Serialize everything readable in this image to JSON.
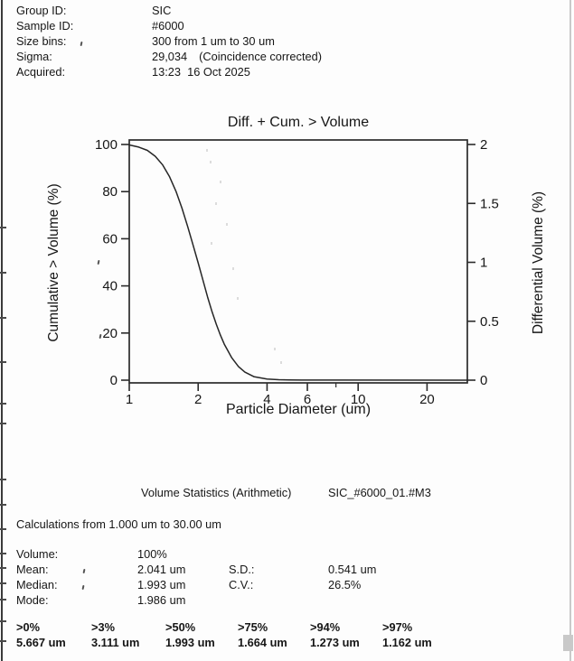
{
  "page": {
    "background": "#fdfdfd",
    "ink": "#161616"
  },
  "header": {
    "rows": [
      {
        "label": "Group ID:",
        "value": "SIC"
      },
      {
        "label": "Sample ID:",
        "value": "#6000"
      },
      {
        "label": "Size bins:",
        "value": "300 from 1 um to 30 um"
      },
      {
        "label": "Sigma:",
        "value": "29,034",
        "note": "(Coincidence corrected)"
      },
      {
        "label": "Acquired:",
        "value": "13:23  16 Oct 2025"
      }
    ]
  },
  "chart_data": {
    "type": "line",
    "title": "Diff. + Cum. > Volume",
    "xlabel": "Particle Diameter (um)",
    "ylabel_left": "Cumulative > Volume (%)",
    "ylabel_right": "Differential Volume (%)",
    "x_scale": "log",
    "xlim": [
      1,
      30
    ],
    "x_ticks": [
      1,
      2,
      4,
      6,
      10,
      20
    ],
    "x_minor_ticks": [
      8
    ],
    "ylim_left": [
      0,
      100
    ],
    "y_ticks_left": [
      0,
      20,
      40,
      60,
      80,
      100
    ],
    "ylim_right": [
      0,
      2
    ],
    "y_ticks_right": [
      0,
      0.5,
      1,
      1.5,
      2
    ],
    "grid": false,
    "legend": "none",
    "curve_color": "#262626",
    "series": [
      {
        "name": "Cumulative > Volume (%)",
        "axis": "left",
        "points": [
          [
            1.0,
            99.8
          ],
          [
            1.1,
            98.9
          ],
          [
            1.2,
            97.5
          ],
          [
            1.3,
            95.0
          ],
          [
            1.4,
            91.3
          ],
          [
            1.5,
            86.3
          ],
          [
            1.6,
            80.1
          ],
          [
            1.7,
            73.0
          ],
          [
            1.8,
            65.2
          ],
          [
            1.9,
            57.3
          ],
          [
            2.0,
            49.8
          ],
          [
            2.1,
            42.3
          ],
          [
            2.2,
            35.2
          ],
          [
            2.3,
            29.0
          ],
          [
            2.4,
            23.7
          ],
          [
            2.5,
            19.1
          ],
          [
            2.6,
            15.3
          ],
          [
            2.8,
            9.6
          ],
          [
            3.0,
            5.8
          ],
          [
            3.2,
            3.4
          ],
          [
            3.5,
            1.5
          ],
          [
            4.0,
            0.5
          ],
          [
            4.5,
            0.2
          ],
          [
            5.0,
            0.1
          ],
          [
            5.667,
            0.05
          ],
          [
            30,
            0.0
          ]
        ]
      }
    ]
  },
  "stats": {
    "section_title": "Volume Statistics (Arithmetic)",
    "dataset_ref": "SIC_#6000_01.#M3",
    "calc_range": "Calculations from 1.000 um to 30.00 um",
    "rows": [
      {
        "label": "Volume:",
        "value": "100%",
        "label2": "",
        "value2": ""
      },
      {
        "label": "Mean:",
        "value": "2.041 um",
        "label2": "S.D.:",
        "value2": "0.541 um"
      },
      {
        "label": "Median:",
        "value": "1.993 um",
        "label2": "C.V.:",
        "value2": "26.5%"
      },
      {
        "label": "Mode:",
        "value": "1.986 um",
        "label2": "",
        "value2": ""
      }
    ],
    "percentiles": [
      {
        "label": ">0%",
        "value": "5.667 um"
      },
      {
        "label": ">3%",
        "value": "3.111 um"
      },
      {
        "label": ">50%",
        "value": "1.993 um"
      },
      {
        "label": ">75%",
        "value": "1.664 um"
      },
      {
        "label": ">94%",
        "value": "1.273 um"
      },
      {
        "label": ">97%",
        "value": "1.162 um"
      }
    ]
  }
}
